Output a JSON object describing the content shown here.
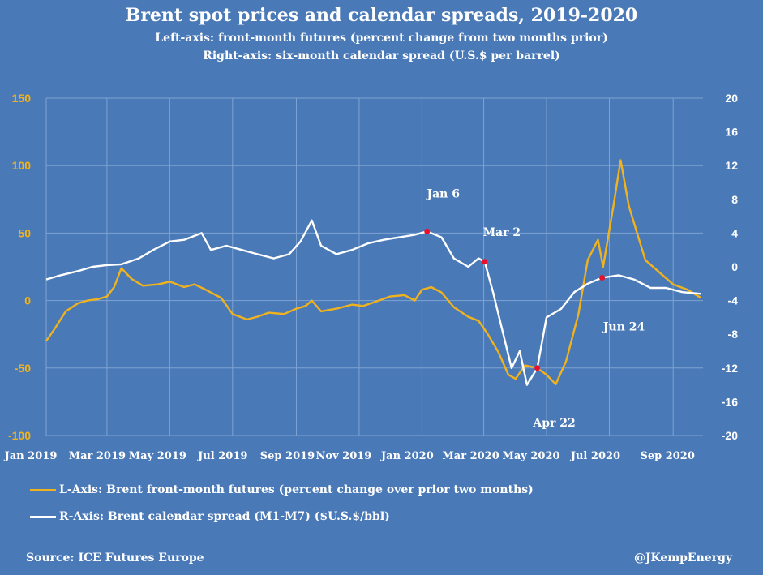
{
  "title": "Brent spot prices and calendar spreads, 2019-2020",
  "subtitle1": "Left-axis: front-month futures (percent change from two months prior)",
  "subtitle2": "Right-axis: six-month calendar spread (U.S.$ per barrel)",
  "legend": {
    "left_series": "L-Axis: Brent front-month futures (percent change over prior two months)",
    "right_series": "R-Axis: Brent calendar spread (M1-M7) ($U.S.$/bbl)"
  },
  "footer": {
    "source": "Source: ICE Futures Europe",
    "handle": "@JKempEnergy"
  },
  "colors": {
    "background": "#4a79b7",
    "left_series": "#f0b31e",
    "right_series": "#ffffff",
    "markers": "#e8102a",
    "grid": "#7ea3d2"
  },
  "chart_data": {
    "type": "line",
    "title": "Brent spot prices and calendar spreads, 2019-2020",
    "x_ticks": [
      "Jan 2019",
      "Mar 2019",
      "May 2019",
      "Jul 2019",
      "Sep 2019",
      "Nov 2019",
      "Jan 2020",
      "Mar 2020",
      "May 2020",
      "Jul 2020",
      "Sep 2020"
    ],
    "x_range": [
      "2019-01-01",
      "2020-09-30"
    ],
    "y_left": {
      "ticks": [
        "150",
        "100",
        "50",
        "0",
        "-50",
        "-100"
      ],
      "range": [
        -100,
        150
      ]
    },
    "y_right": {
      "ticks": [
        "20",
        "16",
        "12",
        "8",
        "4",
        "0",
        "-4",
        "-8",
        "-12",
        "-16",
        "-20"
      ],
      "range": [
        -20,
        20
      ]
    },
    "grid": true,
    "legend_position": "bottom-left",
    "annotations": [
      {
        "label": "Jan 6",
        "date": "2020-01-06",
        "axis": "right",
        "value": 4.2
      },
      {
        "label": "Mar 2",
        "date": "2020-03-02",
        "axis": "right",
        "value": 0.6
      },
      {
        "label": "Apr 22",
        "date": "2020-04-22",
        "axis": "left",
        "value": -50
      },
      {
        "label": "Jun 24",
        "date": "2020-06-24",
        "axis": "right",
        "value": -1.3
      }
    ],
    "series": [
      {
        "name": "L-Axis: Brent front-month futures (percent change over prior two months)",
        "axis": "left",
        "points": [
          [
            "2019-01-01",
            -30
          ],
          [
            "2019-01-10",
            -20
          ],
          [
            "2019-01-20",
            -8
          ],
          [
            "2019-02-01",
            -2
          ],
          [
            "2019-02-10",
            0
          ],
          [
            "2019-02-20",
            1
          ],
          [
            "2019-03-01",
            3
          ],
          [
            "2019-03-08",
            10
          ],
          [
            "2019-03-15",
            24
          ],
          [
            "2019-03-25",
            16
          ],
          [
            "2019-04-05",
            11
          ],
          [
            "2019-04-20",
            12
          ],
          [
            "2019-05-01",
            14
          ],
          [
            "2019-05-15",
            10
          ],
          [
            "2019-05-25",
            12
          ],
          [
            "2019-06-05",
            8
          ],
          [
            "2019-06-20",
            2
          ],
          [
            "2019-07-01",
            -10
          ],
          [
            "2019-07-15",
            -14
          ],
          [
            "2019-07-25",
            -12
          ],
          [
            "2019-08-05",
            -9
          ],
          [
            "2019-08-20",
            -10
          ],
          [
            "2019-09-01",
            -6
          ],
          [
            "2019-09-10",
            -4
          ],
          [
            "2019-09-16",
            0
          ],
          [
            "2019-09-25",
            -8
          ],
          [
            "2019-10-10",
            -6
          ],
          [
            "2019-10-25",
            -3
          ],
          [
            "2019-11-05",
            -4
          ],
          [
            "2019-11-20",
            0
          ],
          [
            "2019-12-01",
            3
          ],
          [
            "2019-12-15",
            4
          ],
          [
            "2019-12-25",
            0
          ],
          [
            "2020-01-01",
            8
          ],
          [
            "2020-01-10",
            10
          ],
          [
            "2020-01-20",
            6
          ],
          [
            "2020-02-01",
            -5
          ],
          [
            "2020-02-15",
            -12
          ],
          [
            "2020-02-25",
            -15
          ],
          [
            "2020-03-05",
            -25
          ],
          [
            "2020-03-15",
            -38
          ],
          [
            "2020-03-25",
            -55
          ],
          [
            "2020-04-01",
            -58
          ],
          [
            "2020-04-10",
            -48
          ],
          [
            "2020-04-22",
            -50
          ],
          [
            "2020-05-01",
            -55
          ],
          [
            "2020-05-10",
            -62
          ],
          [
            "2020-05-20",
            -45
          ],
          [
            "2020-06-01",
            -10
          ],
          [
            "2020-06-10",
            30
          ],
          [
            "2020-06-20",
            45
          ],
          [
            "2020-06-25",
            25
          ],
          [
            "2020-07-05",
            70
          ],
          [
            "2020-07-12",
            104
          ],
          [
            "2020-07-20",
            70
          ],
          [
            "2020-07-28",
            50
          ],
          [
            "2020-08-05",
            30
          ],
          [
            "2020-08-20",
            20
          ],
          [
            "2020-09-01",
            12
          ],
          [
            "2020-09-15",
            8
          ],
          [
            "2020-09-28",
            2
          ]
        ]
      },
      {
        "name": "R-Axis: Brent calendar spread (M1-M7) ($U.S.$/bbl)",
        "axis": "right",
        "points": [
          [
            "2019-01-01",
            -1.5
          ],
          [
            "2019-01-15",
            -1.0
          ],
          [
            "2019-02-01",
            -0.5
          ],
          [
            "2019-02-15",
            0
          ],
          [
            "2019-03-01",
            0.2
          ],
          [
            "2019-03-15",
            0.3
          ],
          [
            "2019-04-01",
            1.0
          ],
          [
            "2019-04-15",
            2.0
          ],
          [
            "2019-05-01",
            3.0
          ],
          [
            "2019-05-15",
            3.2
          ],
          [
            "2019-06-01",
            4.0
          ],
          [
            "2019-06-10",
            2.0
          ],
          [
            "2019-06-25",
            2.5
          ],
          [
            "2019-07-10",
            2.0
          ],
          [
            "2019-07-25",
            1.5
          ],
          [
            "2019-08-10",
            1.0
          ],
          [
            "2019-08-25",
            1.5
          ],
          [
            "2019-09-05",
            3.0
          ],
          [
            "2019-09-16",
            5.5
          ],
          [
            "2019-09-25",
            2.5
          ],
          [
            "2019-10-10",
            1.5
          ],
          [
            "2019-10-25",
            2.0
          ],
          [
            "2019-11-10",
            2.8
          ],
          [
            "2019-11-25",
            3.2
          ],
          [
            "2019-12-10",
            3.5
          ],
          [
            "2019-12-25",
            3.8
          ],
          [
            "2020-01-06",
            4.2
          ],
          [
            "2020-01-20",
            3.5
          ],
          [
            "2020-02-01",
            1.0
          ],
          [
            "2020-02-15",
            0
          ],
          [
            "2020-02-25",
            1.0
          ],
          [
            "2020-03-02",
            0.6
          ],
          [
            "2020-03-10",
            -3
          ],
          [
            "2020-03-20",
            -8
          ],
          [
            "2020-03-28",
            -12
          ],
          [
            "2020-04-05",
            -10
          ],
          [
            "2020-04-12",
            -14
          ],
          [
            "2020-04-22",
            -12
          ],
          [
            "2020-05-01",
            -6
          ],
          [
            "2020-05-15",
            -5
          ],
          [
            "2020-05-28",
            -3
          ],
          [
            "2020-06-10",
            -2
          ],
          [
            "2020-06-24",
            -1.3
          ],
          [
            "2020-07-10",
            -1.0
          ],
          [
            "2020-07-25",
            -1.5
          ],
          [
            "2020-08-10",
            -2.5
          ],
          [
            "2020-08-25",
            -2.5
          ],
          [
            "2020-09-10",
            -3
          ],
          [
            "2020-09-28",
            -3.2
          ]
        ]
      }
    ]
  }
}
